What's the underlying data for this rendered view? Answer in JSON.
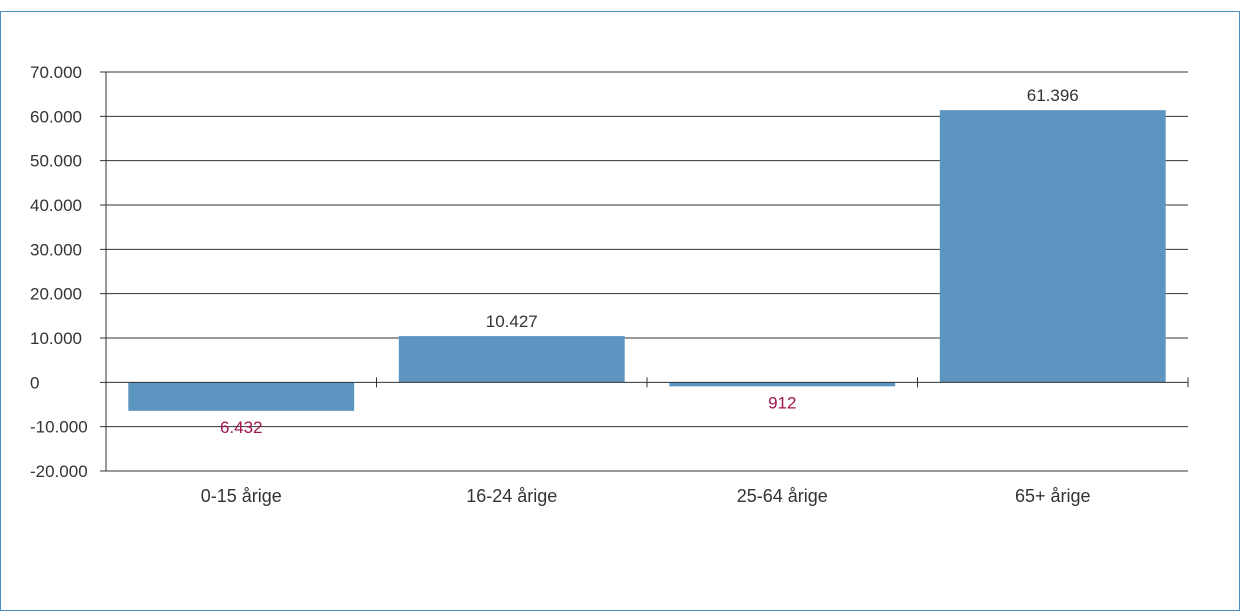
{
  "chart_data": {
    "type": "bar",
    "title": "",
    "xlabel": "",
    "ylabel": "",
    "categories": [
      "0-15 årige",
      "16-24 årige",
      "25-64 årige",
      "65+ årige"
    ],
    "values": [
      -6432,
      10427,
      -912,
      61396
    ],
    "data_labels": [
      "6.432",
      "10.427",
      "912",
      "61.396"
    ],
    "ylim": [
      -20000,
      70000
    ],
    "yticks": [
      70000,
      60000,
      50000,
      40000,
      30000,
      20000,
      10000,
      0,
      -10000,
      -20000
    ],
    "ytick_labels": [
      "70.000",
      "60.000",
      "50.000",
      "40.000",
      "30.000",
      "20.000",
      "10.000",
      "0",
      "-10.000",
      "-20.000"
    ],
    "grid": true,
    "legend": "none",
    "colors": {
      "bar": "#5b95c0",
      "positive_label": "#333333",
      "negative_label": "#a0144f",
      "axis": "#333333",
      "frame": "#4a8fc0"
    }
  }
}
